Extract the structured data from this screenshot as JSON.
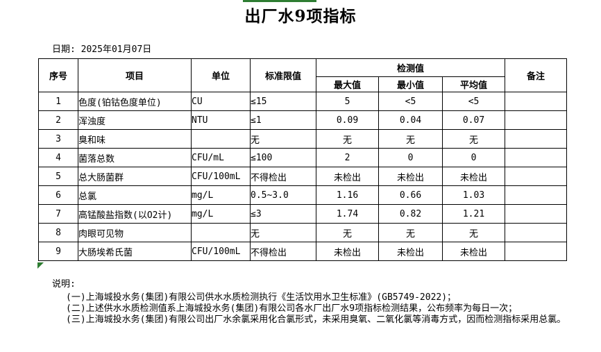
{
  "page": {
    "title": "出厂水9项指标",
    "date_line": "日期: 2025年01月07日"
  },
  "colors": {
    "accent_green": "#2e7d32"
  },
  "table": {
    "headers": {
      "no": "序号",
      "item": "项目",
      "unit": "单位",
      "limit": "标准限值",
      "detection": "检测值",
      "max": "最大值",
      "min": "最小值",
      "avg": "平均值",
      "remark": "备注"
    },
    "rows": [
      {
        "no": "1",
        "item": "色度(铂钴色度单位)",
        "unit": "CU",
        "limit": "≤15",
        "max": "5",
        "min": "<5",
        "avg": "<5",
        "remark": ""
      },
      {
        "no": "2",
        "item": "浑浊度",
        "unit": "NTU",
        "limit": "≤1",
        "max": "0.09",
        "min": "0.04",
        "avg": "0.07",
        "remark": ""
      },
      {
        "no": "3",
        "item": "臭和味",
        "unit": "",
        "limit": "无",
        "max": "无",
        "min": "无",
        "avg": "无",
        "remark": ""
      },
      {
        "no": "4",
        "item": "菌落总数",
        "unit": "CFU/mL",
        "limit": "≤100",
        "max": "2",
        "min": "0",
        "avg": "0",
        "remark": ""
      },
      {
        "no": "5",
        "item": "总大肠菌群",
        "unit": "CFU/100mL",
        "limit": "不得检出",
        "max": "未检出",
        "min": "未检出",
        "avg": "未检出",
        "remark": ""
      },
      {
        "no": "6",
        "item": "总氯",
        "unit": "mg/L",
        "limit": "0.5~3.0",
        "max": "1.16",
        "min": "0.66",
        "avg": "1.03",
        "remark": ""
      },
      {
        "no": "7",
        "item": "高锰酸盐指数(以O2计)",
        "unit": "mg/L",
        "limit": "≤3",
        "max": "1.74",
        "min": "0.82",
        "avg": "1.21",
        "remark": ""
      },
      {
        "no": "8",
        "item": "肉眼可见物",
        "unit": "",
        "limit": "无",
        "max": "无",
        "min": "无",
        "avg": "无",
        "remark": ""
      },
      {
        "no": "9",
        "item": "大肠埃希氏菌",
        "unit": "CFU/100mL",
        "limit": "不得检出",
        "max": "未检出",
        "min": "未检出",
        "avg": "未检出",
        "remark": ""
      }
    ]
  },
  "notes": {
    "label": "说明:",
    "lines": [
      "(一)上海城投水务(集团)有限公司供水水质检测执行《生活饮用水卫生标准》(GB5749-2022)；",
      "(二)上述供水水质检测值系上海城投水务(集团)有限公司各水厂出厂水9项指标检测结果，公布频率为每日一次；",
      "(三)上海城投水务(集团)有限公司出厂水余氯采用化合氯形式，未采用臭氧、二氧化氯等消毒方式，因而检测指标采用总氯。"
    ]
  }
}
